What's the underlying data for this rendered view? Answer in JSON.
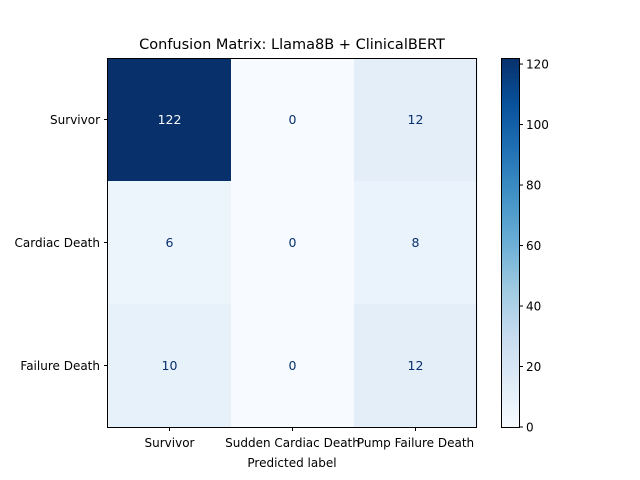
{
  "chart_data": {
    "type": "heatmap",
    "title": "Confusion Matrix: Llama8B + ClinicalBERT",
    "xlabel": "Predicted label",
    "ylabel": "",
    "x_categories": [
      "Survivor",
      "Sudden Cardiac Death",
      "Pump Failure Death"
    ],
    "y_categories": [
      "Survivor",
      "Cardiac Death",
      "Failure Death"
    ],
    "values": [
      [
        122,
        0,
        12
      ],
      [
        6,
        0,
        8
      ],
      [
        10,
        0,
        12
      ]
    ],
    "colormap": "Blues",
    "colorbar": {
      "min": 0,
      "max": 122,
      "ticks": [
        0,
        20,
        40,
        60,
        80,
        100,
        120
      ]
    },
    "grid": false
  }
}
